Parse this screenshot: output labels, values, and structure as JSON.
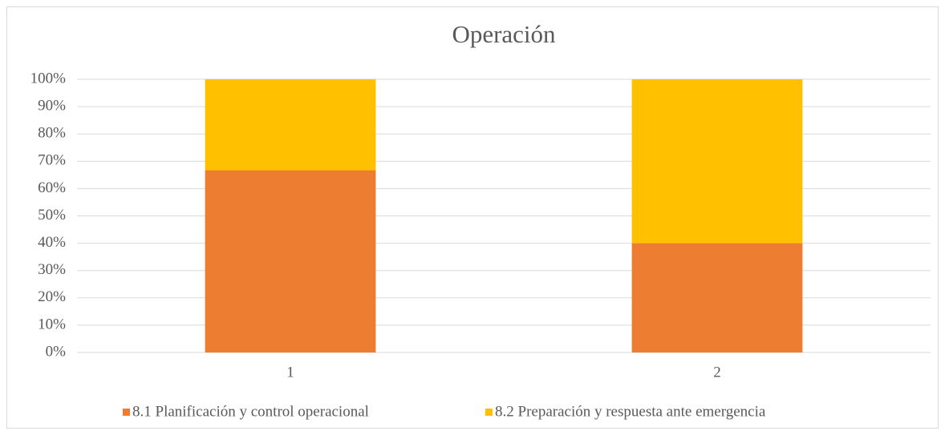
{
  "chart_data": {
    "type": "stacked_bar",
    "title": "Operación",
    "categories": [
      "1",
      "2"
    ],
    "series": [
      {
        "name": "8.1 Planificación y control operacional",
        "color": "#ED7D31",
        "values": [
          66.7,
          40
        ]
      },
      {
        "name": "8.2 Preparación y respuesta ante emergencia",
        "color": "#FFC000",
        "values": [
          33.3,
          60
        ]
      }
    ],
    "ylim": [
      0,
      100
    ],
    "yticks": [
      {
        "value": 0,
        "label": "0%"
      },
      {
        "value": 10,
        "label": "10%"
      },
      {
        "value": 20,
        "label": "20%"
      },
      {
        "value": 30,
        "label": "30%"
      },
      {
        "value": 40,
        "label": "40%"
      },
      {
        "value": 50,
        "label": "50%"
      },
      {
        "value": 60,
        "label": "60%"
      },
      {
        "value": 70,
        "label": "70%"
      },
      {
        "value": 80,
        "label": "80%"
      },
      {
        "value": 90,
        "label": "90%"
      },
      {
        "value": 100,
        "label": "100%"
      }
    ],
    "grid": true,
    "legend": "bottom"
  }
}
